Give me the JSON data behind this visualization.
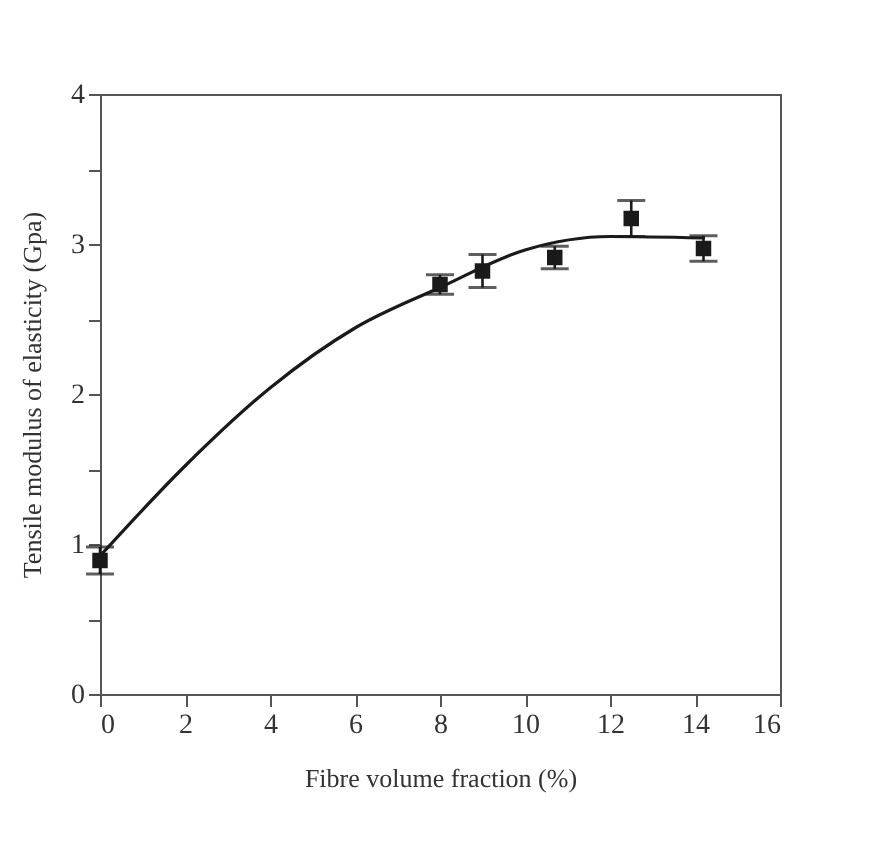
{
  "chart_data": {
    "type": "scatter",
    "xlabel": "Fibre volume fraction (%)",
    "ylabel": "Tensile modulus of elasticity (Gpa)",
    "xlim": [
      0,
      16
    ],
    "xticks": [
      0,
      2,
      4,
      6,
      8,
      10,
      12,
      14,
      16
    ],
    "ylim": [
      0,
      4
    ],
    "yticks": [
      0,
      {
        "value": 0.5,
        "label": null
      },
      1,
      {
        "value": 1.5,
        "label": null
      },
      2,
      {
        "value": 2.5,
        "label": null
      },
      3,
      {
        "value": 3.5,
        "label": null
      },
      4
    ],
    "grid": false,
    "series": [
      {
        "marker": "square",
        "color": "#1a1a1a",
        "x": [
          0,
          8,
          9,
          10.7,
          12.5,
          14.2
        ],
        "values": [
          0.89,
          2.73,
          2.82,
          2.91,
          3.17,
          2.97
        ],
        "errors": [
          0.09,
          0.065,
          0.11,
          0.075,
          0.12,
          0.085
        ]
      },
      {
        "type": "line",
        "color": "#1a1a1a",
        "line_style": "solid",
        "x": [
          0,
          2,
          4,
          6,
          8,
          10,
          12,
          14.2
        ],
        "values": [
          0.92,
          1.52,
          2.04,
          2.44,
          2.71,
          2.96,
          3.05,
          3.04
        ]
      }
    ]
  }
}
